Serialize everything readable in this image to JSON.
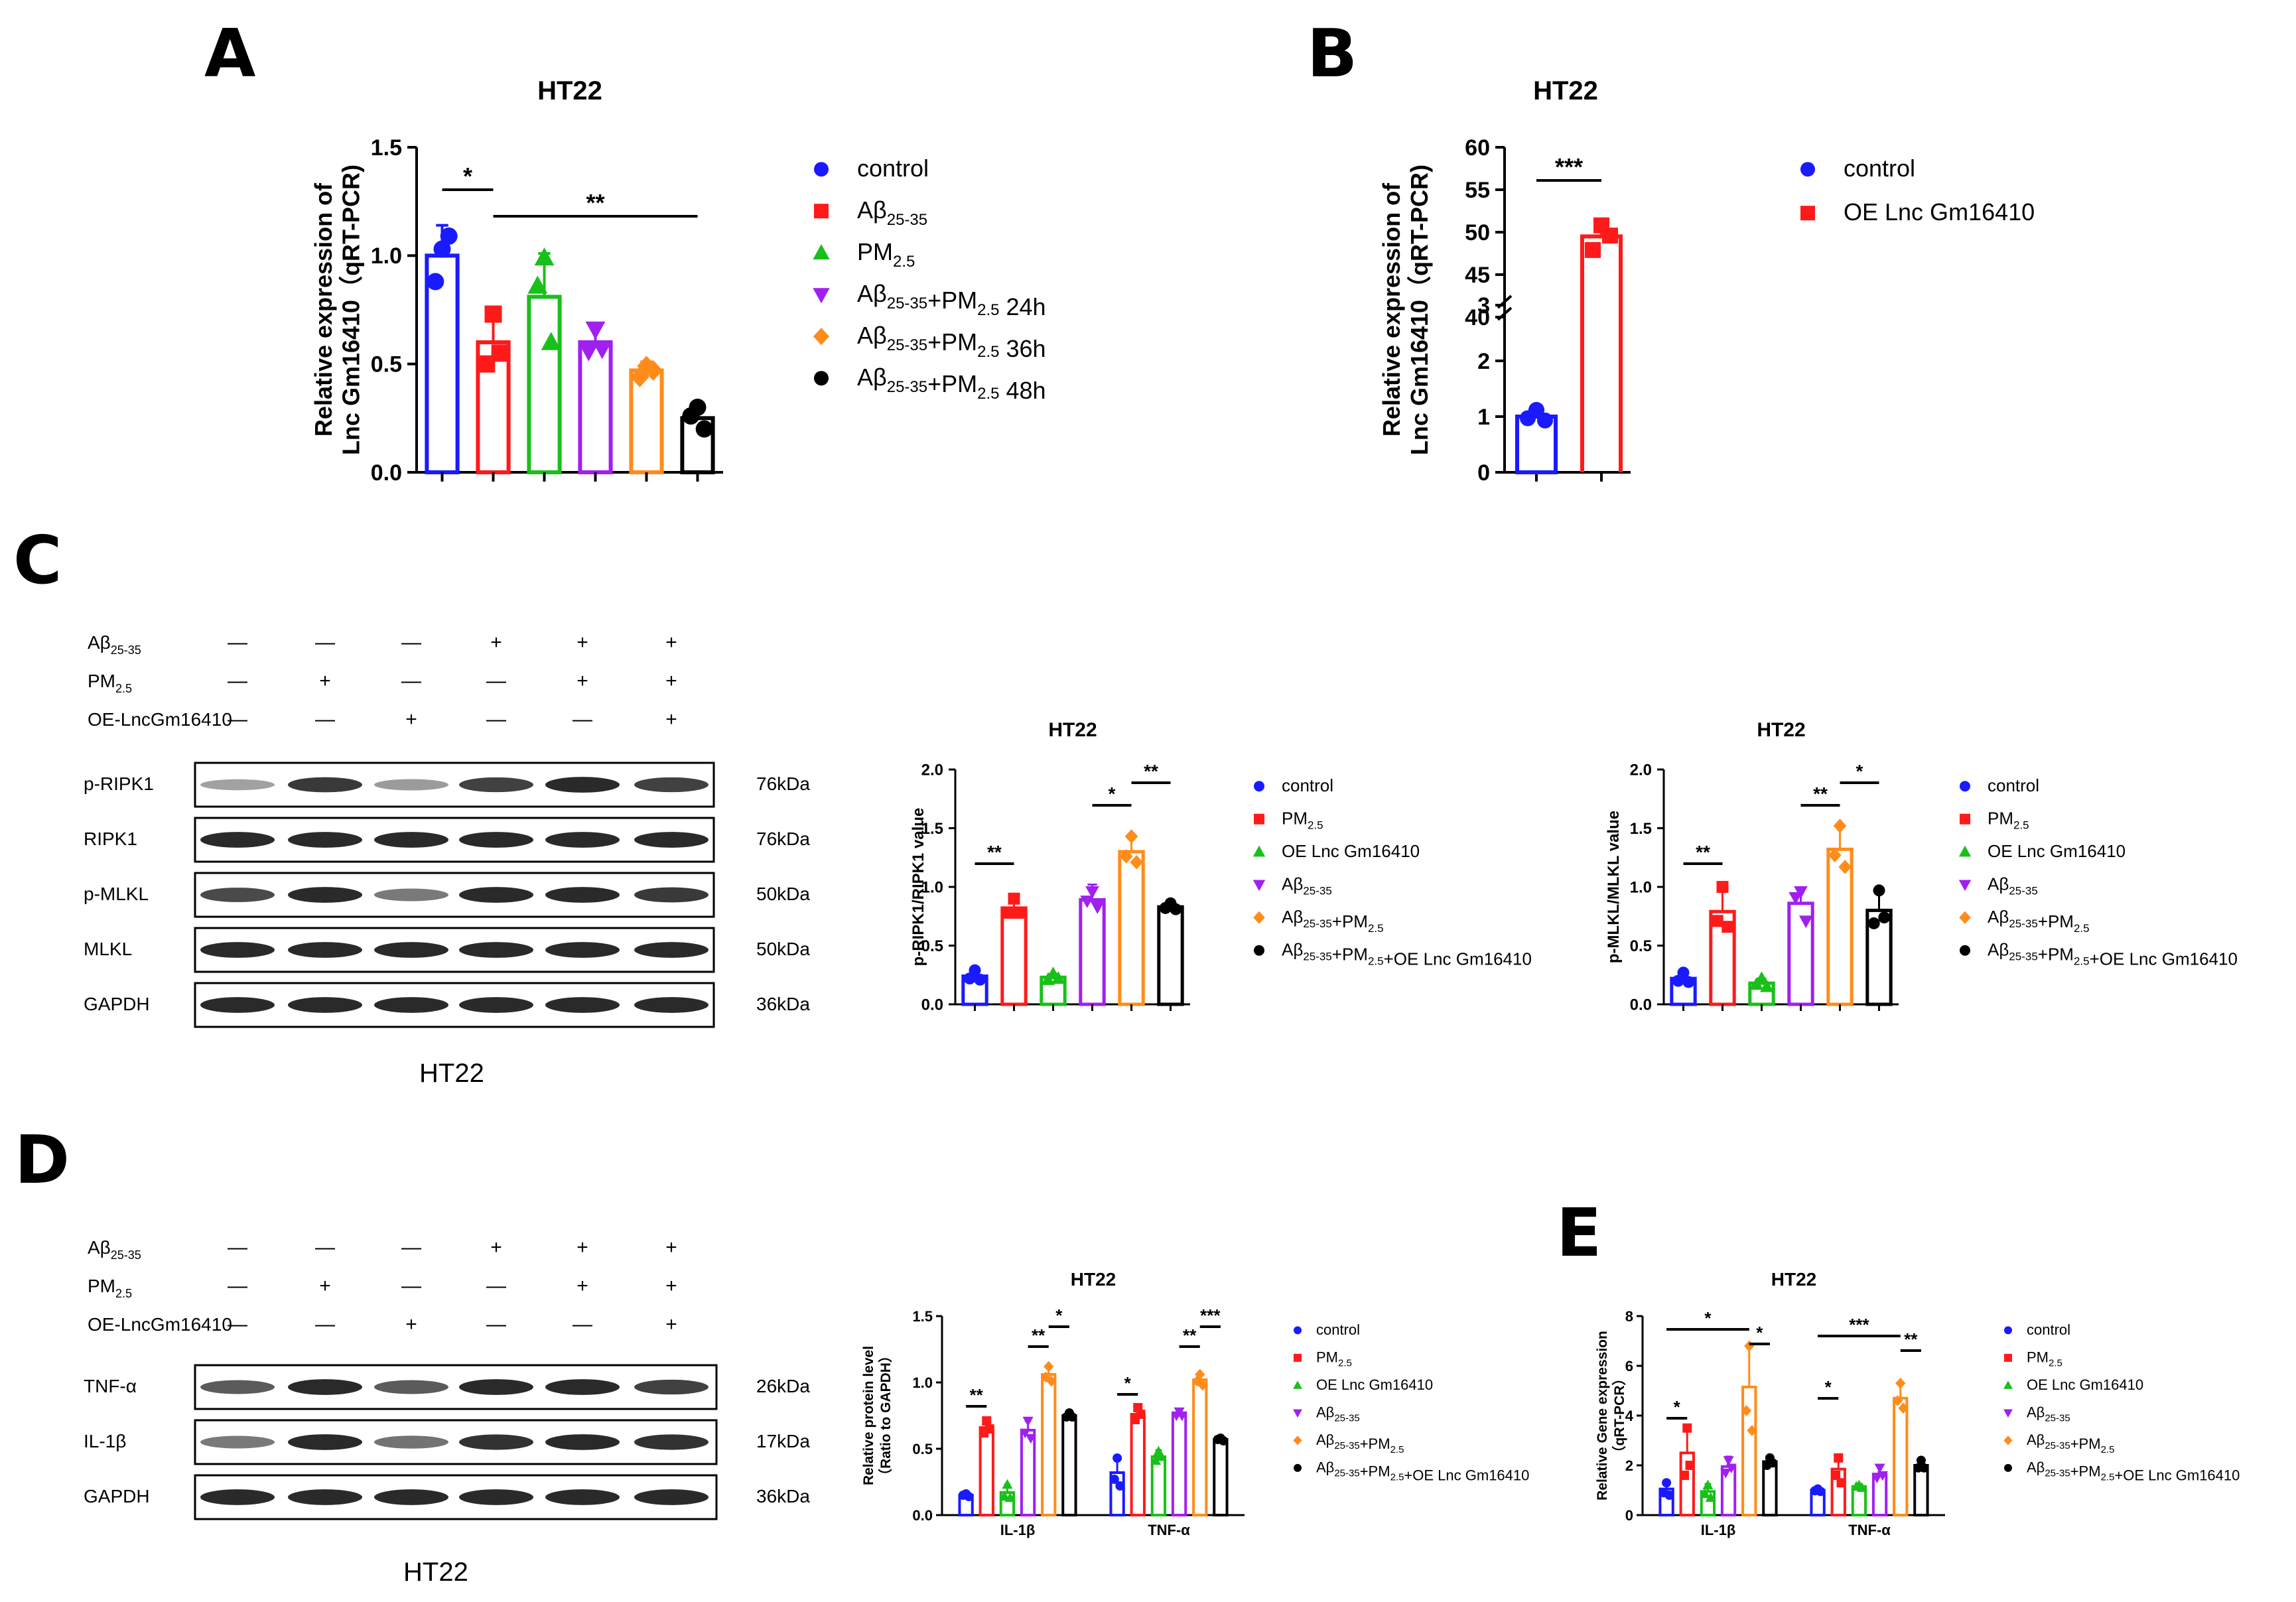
{
  "figure": {
    "panel_letters": [
      "A",
      "B",
      "C",
      "D",
      "E"
    ],
    "blot_caption": "HT22",
    "colors": {
      "control": "#1a1aff",
      "abeta": "#ff1a1a",
      "pm": "#19c019",
      "h24": "#a020f0",
      "h36": "#ff8c1a",
      "h48": "#000000",
      "band": "#2a2a2a",
      "box": "#000000"
    }
  },
  "chart_data": [
    {
      "id": "A",
      "type": "bar",
      "title": "HT22",
      "ylabel_lines": [
        "Relative expression of",
        "Lnc Gm16410（qRT-PCR)"
      ],
      "ylim": [
        0,
        1.5
      ],
      "yticks": [
        "0.0",
        "0.5",
        "1.0",
        "1.5"
      ],
      "categories": [
        "control",
        "Aβ25-35",
        "PM2.5",
        "Aβ25-35+PM2.5 24h",
        "Aβ25-35+PM2.5 36h",
        "Aβ25-35+PM2.5 48h"
      ],
      "values": [
        1.0,
        0.6,
        0.81,
        0.6,
        0.47,
        0.25
      ],
      "errors": [
        0.14,
        0.1,
        0.2,
        0.08,
        0.04,
        0.06
      ],
      "points": [
        [
          1.03,
          0.88,
          1.09
        ],
        [
          0.73,
          0.5,
          0.55
        ],
        [
          0.99,
          0.86,
          0.6
        ],
        [
          0.66,
          0.56,
          0.57
        ],
        [
          0.49,
          0.44,
          0.47
        ],
        [
          0.3,
          0.26,
          0.2
        ]
      ],
      "legend": [
        {
          "label": "control",
          "marker": "circle"
        },
        {
          "label": "Aβ",
          "sub": "25-35",
          "rest": "",
          "marker": "square"
        },
        {
          "label": "PM",
          "sub": "2.5",
          "rest": "",
          "marker": "triangle"
        },
        {
          "label": "Aβ",
          "sub": "25-35",
          "rest": "+PM",
          "sub2": "2.5",
          "rest2": " 24h",
          "marker": "triangle-down"
        },
        {
          "label": "Aβ",
          "sub": "25-35",
          "rest": "+PM",
          "sub2": "2.5",
          "rest2": " 36h",
          "marker": "diamond"
        },
        {
          "label": "Aβ",
          "sub": "25-35",
          "rest": "+PM",
          "sub2": "2.5",
          "rest2": " 48h",
          "marker": "circle"
        }
      ],
      "significance": [
        {
          "text": "*",
          "from": 0,
          "to": 1
        },
        {
          "text": "**",
          "from": 1,
          "to": 5
        }
      ]
    },
    {
      "id": "B",
      "type": "bar",
      "title": "HT22",
      "ylabel_lines": [
        "Relative expression of",
        "Lnc Gm16410（qRT-PCR)"
      ],
      "axis_break": {
        "lower": [
          0,
          3
        ],
        "upper": [
          40,
          60
        ]
      },
      "yticks_lower": [
        "0",
        "1",
        "2",
        "3"
      ],
      "yticks_upper": [
        "40",
        "45",
        "50",
        "55",
        "60"
      ],
      "categories": [
        "control",
        "OE Lnc Gm16410"
      ],
      "values": [
        1.0,
        49.5
      ],
      "errors": [
        0.12,
        1.6
      ],
      "points": [
        [
          1.12,
          0.97,
          0.93
        ],
        [
          50.8,
          47.9,
          49.6
        ]
      ],
      "legend": [
        {
          "label": "control",
          "marker": "circle"
        },
        {
          "label": "OE Lnc Gm16410",
          "marker": "square"
        }
      ],
      "significance": [
        {
          "text": "***",
          "from": 0,
          "to": 1
        }
      ]
    },
    {
      "id": "C1",
      "type": "bar",
      "title": "HT22",
      "ylabel": "p-RIPK1/RIPK1 value",
      "ylim": [
        0,
        2.0
      ],
      "yticks": [
        "0.0",
        "0.5",
        "1.0",
        "1.5",
        "2.0"
      ],
      "categories": [
        "control",
        "PM2.5",
        "OE Lnc Gm16410",
        "Aβ25-35",
        "Aβ25-35+PM2.5",
        "Aβ25-35+PM2.5+OE Lnc Gm16410"
      ],
      "values": [
        0.24,
        0.82,
        0.23,
        0.89,
        1.3,
        0.83
      ],
      "errors": [
        0.05,
        0.08,
        0.03,
        0.13,
        0.13,
        0.05
      ],
      "points": [
        [
          0.29,
          0.22,
          0.21
        ],
        [
          0.9,
          0.78,
          0.78
        ],
        [
          0.26,
          0.21,
          0.22
        ],
        [
          0.96,
          0.88,
          0.83
        ],
        [
          1.43,
          1.26,
          1.21
        ],
        [
          0.86,
          0.82,
          0.81
        ]
      ],
      "legend": [
        {
          "label": "control",
          "marker": "circle"
        },
        {
          "label": "PM",
          "sub": "2.5",
          "rest": "",
          "marker": "square"
        },
        {
          "label": "OE Lnc Gm16410",
          "marker": "triangle"
        },
        {
          "label": "Aβ",
          "sub": "25-35",
          "rest": "",
          "marker": "triangle-down"
        },
        {
          "label": "Aβ",
          "sub": "25-35",
          "rest": "+PM",
          "sub2": "2.5",
          "rest2": "",
          "marker": "diamond"
        },
        {
          "label": "Aβ",
          "sub": "25-35",
          "rest": "+PM",
          "sub2": "2.5",
          "rest2": "+OE Lnc Gm16410",
          "marker": "circle"
        }
      ],
      "significance": [
        {
          "text": "**",
          "from": 0,
          "to": 1
        },
        {
          "text": "*",
          "from": 3,
          "to": 4
        },
        {
          "text": "**",
          "from": 4,
          "to": 5
        }
      ]
    },
    {
      "id": "C2",
      "type": "bar",
      "title": "HT22",
      "ylabel": "p-MLKL/MLKL value",
      "ylim": [
        0,
        2.0
      ],
      "yticks": [
        "0.0",
        "0.5",
        "1.0",
        "1.5",
        "2.0"
      ],
      "categories": [
        "control",
        "PM2.5",
        "OE Lnc Gm16410",
        "Aβ25-35",
        "Aβ25-35+PM2.5",
        "Aβ25-35+PM2.5+OE Lnc Gm16410"
      ],
      "values": [
        0.22,
        0.79,
        0.18,
        0.86,
        1.32,
        0.8
      ],
      "errors": [
        0.05,
        0.17,
        0.04,
        0.13,
        0.2,
        0.18
      ],
      "points": [
        [
          0.27,
          0.2,
          0.19
        ],
        [
          1.0,
          0.71,
          0.66
        ],
        [
          0.22,
          0.17,
          0.15
        ],
        [
          0.96,
          0.91,
          0.71
        ],
        [
          1.52,
          1.27,
          1.17
        ],
        [
          0.97,
          0.69,
          0.74
        ]
      ],
      "legend": [
        {
          "label": "control",
          "marker": "circle"
        },
        {
          "label": "PM",
          "sub": "2.5",
          "rest": "",
          "marker": "square"
        },
        {
          "label": "OE Lnc Gm16410",
          "marker": "triangle"
        },
        {
          "label": "Aβ",
          "sub": "25-35",
          "rest": "",
          "marker": "triangle-down"
        },
        {
          "label": "Aβ",
          "sub": "25-35",
          "rest": "+PM",
          "sub2": "2.5",
          "rest2": "",
          "marker": "diamond"
        },
        {
          "label": "Aβ",
          "sub": "25-35",
          "rest": "+PM",
          "sub2": "2.5",
          "rest2": "+OE Lnc Gm16410",
          "marker": "circle"
        }
      ],
      "significance": [
        {
          "text": "**",
          "from": 0,
          "to": 1
        },
        {
          "text": "**",
          "from": 3,
          "to": 4
        },
        {
          "text": "*",
          "from": 4,
          "to": 5
        }
      ]
    },
    {
      "id": "D",
      "type": "grouped-bar",
      "title": "HT22",
      "ylabel_lines": [
        "Relative protein level",
        "（Ratio to GAPDH）"
      ],
      "ylim": [
        0,
        1.5
      ],
      "yticks": [
        "0.0",
        "0.5",
        "1.0",
        "1.5"
      ],
      "groups": [
        "IL-1β",
        "TNF-α"
      ],
      "series": [
        {
          "name": "control",
          "values": [
            0.15,
            0.32
          ],
          "errors": [
            0.01,
            0.12
          ],
          "points": [
            [
              0.16,
              0.15,
              0.14
            ],
            [
              0.43,
              0.27,
              0.22
            ]
          ]
        },
        {
          "name": "PM2.5",
          "values": [
            0.66,
            0.76
          ],
          "errors": [
            0.05,
            0.06
          ],
          "points": [
            [
              0.71,
              0.62,
              0.65
            ],
            [
              0.81,
              0.72,
              0.76
            ]
          ]
        },
        {
          "name": "OE Lnc Gm16410",
          "values": [
            0.17,
            0.44
          ],
          "errors": [
            0.06,
            0.05
          ],
          "points": [
            [
              0.23,
              0.14,
              0.13
            ],
            [
              0.48,
              0.41,
              0.44
            ]
          ]
        },
        {
          "name": "Aβ25-35",
          "values": [
            0.64,
            0.76
          ],
          "errors": [
            0.07,
            0.02
          ],
          "points": [
            [
              0.71,
              0.62,
              0.58
            ],
            [
              0.78,
              0.75,
              0.75
            ]
          ]
        },
        {
          "name": "Aβ25-35+PM2.5",
          "values": [
            1.06,
            1.02
          ],
          "errors": [
            0.07,
            0.04
          ],
          "points": [
            [
              1.12,
              1.04,
              1.01
            ],
            [
              1.06,
              1.01,
              0.98
            ]
          ]
        },
        {
          "name": "Aβ25-35+PM2.5+OE Lnc Gm16410",
          "values": [
            0.75,
            0.57
          ],
          "errors": [
            0.03,
            0.02
          ],
          "points": [
            [
              0.77,
              0.74,
              0.74
            ],
            [
              0.58,
              0.57,
              0.56
            ]
          ]
        }
      ],
      "significance": [
        {
          "text": "**",
          "group": 0,
          "from": 0,
          "to": 1
        },
        {
          "text": "**",
          "group": 0,
          "from": 3,
          "to": 4
        },
        {
          "text": "*",
          "group": 0,
          "from": 4,
          "to": 5
        },
        {
          "text": "*",
          "group": 1,
          "from": 0,
          "to": 1
        },
        {
          "text": "**",
          "group": 1,
          "from": 3,
          "to": 4
        },
        {
          "text": "***",
          "group": 1,
          "from": 4,
          "to": 5
        }
      ],
      "legend": [
        {
          "label": "control",
          "marker": "circle"
        },
        {
          "label": "PM",
          "sub": "2.5",
          "rest": "",
          "marker": "square"
        },
        {
          "label": "OE Lnc Gm16410",
          "marker": "triangle"
        },
        {
          "label": "Aβ",
          "sub": "25-35",
          "rest": "",
          "marker": "triangle-down"
        },
        {
          "label": "Aβ",
          "sub": "25-35",
          "rest": "+PM",
          "sub2": "2.5",
          "rest2": "",
          "marker": "diamond"
        },
        {
          "label": "Aβ",
          "sub": "25-35",
          "rest": "+PM",
          "sub2": "2.5",
          "rest2": "+OE Lnc Gm16410",
          "marker": "circle"
        }
      ]
    },
    {
      "id": "E",
      "type": "grouped-bar",
      "title": "HT22",
      "ylabel_lines": [
        "Relative Gene expression",
        "（qRT-PCR）"
      ],
      "ylim": [
        0,
        8
      ],
      "yticks": [
        "0",
        "2",
        "4",
        "6",
        "8"
      ],
      "groups": [
        "IL-1β",
        "TNF-α"
      ],
      "series": [
        {
          "name": "control",
          "values": [
            1.05,
            1.0
          ],
          "errors": [
            0.3,
            0.08
          ],
          "points": [
            [
              1.3,
              0.9,
              0.8
            ],
            [
              1.05,
              0.98,
              0.95
            ]
          ]
        },
        {
          "name": "PM2.5",
          "values": [
            2.5,
            1.85
          ],
          "errors": [
            1.1,
            0.5
          ],
          "points": [
            [
              3.5,
              1.6,
              2.0
            ],
            [
              2.3,
              1.6,
              1.3
            ]
          ]
        },
        {
          "name": "OE Lnc Gm16410",
          "values": [
            0.95,
            1.15
          ],
          "errors": [
            0.3,
            0.08
          ],
          "points": [
            [
              1.2,
              0.85,
              0.7
            ],
            [
              1.2,
              1.15,
              1.1
            ]
          ]
        },
        {
          "name": "Aβ25-35",
          "values": [
            1.95,
            1.65
          ],
          "errors": [
            0.4,
            0.3
          ],
          "points": [
            [
              2.2,
              1.7,
              1.9
            ],
            [
              1.9,
              1.5,
              1.6
            ]
          ]
        },
        {
          "name": "Aβ25-35+PM2.5",
          "values": [
            5.15,
            4.7
          ],
          "errors": [
            1.7,
            0.6
          ],
          "points": [
            [
              6.8,
              4.2,
              3.4
            ],
            [
              5.3,
              4.6,
              4.3
            ]
          ]
        },
        {
          "name": "Aβ25-35+PM2.5+OE Lnc Gm16410",
          "values": [
            2.15,
            2.0
          ],
          "errors": [
            0.25,
            0.25
          ],
          "points": [
            [
              2.3,
              2.0,
              2.1
            ],
            [
              2.2,
              1.9,
              1.9
            ]
          ]
        }
      ],
      "significance": [
        {
          "text": "*",
          "group": 0,
          "from": 0,
          "to": 1
        },
        {
          "text": "*",
          "group": 0,
          "from": 4,
          "to": 5
        },
        {
          "text": "*",
          "span": [
            0,
            0,
            0,
            4
          ]
        },
        {
          "text": "*",
          "group": 1,
          "from": 0,
          "to": 1
        },
        {
          "text": "**",
          "group": 1,
          "from": 4,
          "to": 5
        },
        {
          "text": "***",
          "span": [
            1,
            0,
            1,
            4
          ]
        }
      ],
      "legend": [
        {
          "label": "control",
          "marker": "circle"
        },
        {
          "label": "PM",
          "sub": "2.5",
          "rest": "",
          "marker": "square"
        },
        {
          "label": "OE Lnc Gm16410",
          "marker": "triangle"
        },
        {
          "label": "Aβ",
          "sub": "25-35",
          "rest": "",
          "marker": "triangle-down"
        },
        {
          "label": "Aβ",
          "sub": "25-35",
          "rest": "+PM",
          "sub2": "2.5",
          "rest2": "",
          "marker": "diamond"
        },
        {
          "label": "Aβ",
          "sub": "25-35",
          "rest": "+PM",
          "sub2": "2.5",
          "rest2": "+OE Lnc Gm16410",
          "marker": "circle"
        }
      ]
    }
  ],
  "blots": [
    {
      "id": "C",
      "conditions": [
        {
          "label": "Aβ",
          "sub": "25-35",
          "signs": [
            "—",
            "—",
            "—",
            "+",
            "+",
            "+"
          ]
        },
        {
          "label": "PM",
          "sub": "2.5",
          "signs": [
            "—",
            "+",
            "—",
            "—",
            "+",
            "+"
          ]
        },
        {
          "label": "OE-LncGm16410",
          "sub": "",
          "signs": [
            "—",
            "—",
            "+",
            "—",
            "—",
            "+"
          ]
        }
      ],
      "rows": [
        {
          "label": "p-RIPK1",
          "size": "76kDa",
          "intensity": [
            0.25,
            0.9,
            0.3,
            0.85,
            1.0,
            0.85
          ]
        },
        {
          "label": "RIPK1",
          "size": "76kDa",
          "intensity": [
            1,
            1,
            1,
            1,
            1,
            1
          ]
        },
        {
          "label": "p-MLKL",
          "size": "50kDa",
          "intensity": [
            0.8,
            1.0,
            0.5,
            1.0,
            1.0,
            0.9
          ]
        },
        {
          "label": "MLKL",
          "size": "50kDa",
          "intensity": [
            1,
            1,
            1,
            1,
            1,
            1
          ]
        },
        {
          "label": "GAPDH",
          "size": "36kDa",
          "intensity": [
            1,
            1,
            1,
            1,
            1,
            1
          ]
        }
      ]
    },
    {
      "id": "D",
      "conditions": [
        {
          "label": "Aβ",
          "sub": "25-35",
          "signs": [
            "—",
            "—",
            "—",
            "+",
            "+",
            "+"
          ]
        },
        {
          "label": "PM",
          "sub": "2.5",
          "signs": [
            "—",
            "+",
            "—",
            "—",
            "+",
            "+"
          ]
        },
        {
          "label": "OE-LncGm16410",
          "sub": "",
          "signs": [
            "—",
            "—",
            "+",
            "—",
            "—",
            "+"
          ]
        }
      ],
      "rows": [
        {
          "label": "TNF-α",
          "size": "26kDa",
          "intensity": [
            0.7,
            1.0,
            0.7,
            1.0,
            1.0,
            0.85
          ]
        },
        {
          "label": "IL-1β",
          "size": "17kDa",
          "intensity": [
            0.5,
            1.0,
            0.55,
            0.95,
            1.0,
            0.95
          ]
        },
        {
          "label": "GAPDH",
          "size": "36kDa",
          "intensity": [
            1,
            1,
            1,
            1,
            1,
            1
          ]
        }
      ]
    }
  ]
}
